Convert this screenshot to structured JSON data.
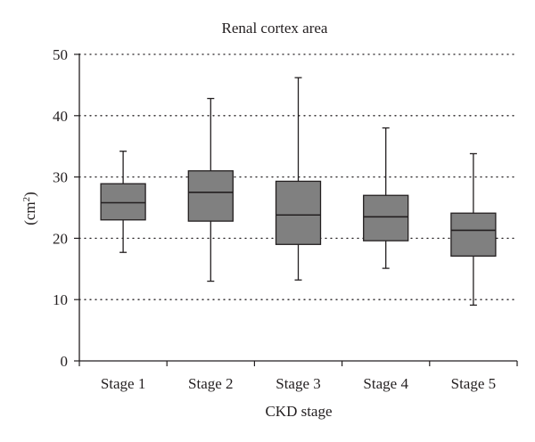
{
  "chart_data": {
    "type": "boxplot",
    "title": "Renal cortex area",
    "xlabel": "CKD stage",
    "ylabel_base": "(cm",
    "ylabel_sup": "2",
    "ylabel_close": ")",
    "ylim": [
      0,
      50
    ],
    "yticks": [
      0,
      10,
      20,
      30,
      40,
      50
    ],
    "grid": "horizontal dotted",
    "box_color": "#808080",
    "line_color": "#231f20",
    "categories": [
      "Stage 1",
      "Stage 2",
      "Stage 3",
      "Stage 4",
      "Stage 5"
    ],
    "boxes": [
      {
        "min": 17.7,
        "q1": 23.0,
        "median": 25.8,
        "q3": 28.9,
        "max": 34.2
      },
      {
        "min": 13.0,
        "q1": 22.8,
        "median": 27.5,
        "q3": 31.0,
        "max": 42.8
      },
      {
        "min": 13.2,
        "q1": 19.0,
        "median": 23.8,
        "q3": 29.3,
        "max": 46.2
      },
      {
        "min": 15.1,
        "q1": 19.6,
        "median": 23.5,
        "q3": 27.0,
        "max": 38.0
      },
      {
        "min": 9.1,
        "q1": 17.1,
        "median": 21.3,
        "q3": 24.1,
        "max": 33.8
      }
    ]
  }
}
